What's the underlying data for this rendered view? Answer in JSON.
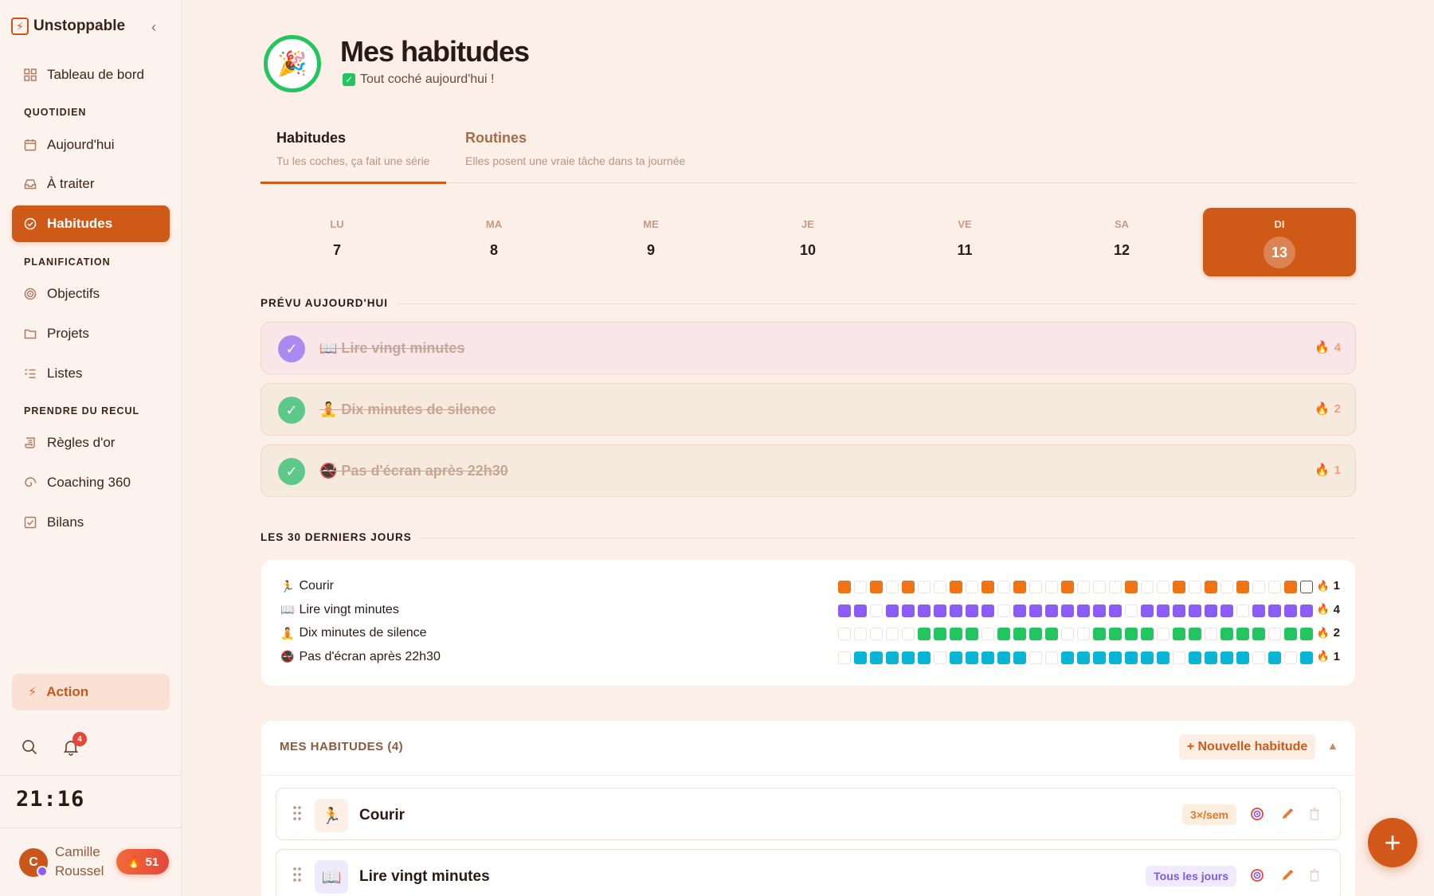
{
  "sidebar": {
    "brand": "Unstoppable",
    "collapse_glyph": "‹",
    "nav": {
      "dashboard": "Tableau de bord",
      "sec_daily": "QUOTIDIEN",
      "today": "Aujourd'hui",
      "todo": "À traiter",
      "habits": "Habitudes",
      "sec_planning": "PLANIFICATION",
      "goals": "Objectifs",
      "projects": "Projets",
      "lists": "Listes",
      "sec_step_back": "PRENDRE DU RECUL",
      "golden_rules": "Règles d'or",
      "coaching": "Coaching 360",
      "reviews": "Bilans"
    },
    "action_label": "Action",
    "notification_count": "4",
    "clock": "21:16",
    "user": {
      "initial": "C",
      "name": "Camille Roussel",
      "streak": "51"
    }
  },
  "header": {
    "icon": "🎉",
    "title": "Mes habitudes",
    "subtitle": "Tout coché aujourd'hui !"
  },
  "tabs": [
    {
      "title": "Habitudes",
      "subtitle": "Tu les coches, ça fait une série"
    },
    {
      "title": "Routines",
      "subtitle": "Elles posent une vraie tâche dans ta journée"
    }
  ],
  "week": [
    {
      "label": "LU",
      "num": "7"
    },
    {
      "label": "MA",
      "num": "8"
    },
    {
      "label": "ME",
      "num": "9"
    },
    {
      "label": "JE",
      "num": "10"
    },
    {
      "label": "VE",
      "num": "11"
    },
    {
      "label": "SA",
      "num": "12"
    },
    {
      "label": "DI",
      "num": "13"
    }
  ],
  "today_section": "PRÉVU AUJOURD'HUI",
  "today_habits": [
    {
      "label": "📖 Lire vingt minutes",
      "streak": "4",
      "check_color": "#a98bf0",
      "bg": "#f8e6e8"
    },
    {
      "label": "🧘 Dix minutes de silence",
      "streak": "2",
      "check_color": "#5cc98a",
      "bg": "#f6eadf"
    },
    {
      "label": "🚭 Pas d'écran après 22h30",
      "streak": "1",
      "check_color": "#5cc98a",
      "bg": "#f6eadf"
    }
  ],
  "last30_section": "LES 30 DERNIERS JOURS",
  "last30": [
    {
      "emoji": "🏃",
      "name": "Courir",
      "streak": "1",
      "color": "#f07316",
      "days": [
        1,
        0,
        1,
        0,
        1,
        0,
        0,
        1,
        0,
        1,
        0,
        1,
        0,
        0,
        1,
        0,
        0,
        0,
        1,
        0,
        0,
        1,
        0,
        1,
        0,
        1,
        0,
        0,
        1,
        0
      ]
    },
    {
      "emoji": "📖",
      "name": "Lire vingt minutes",
      "streak": "4",
      "color": "#8b5cf6",
      "days": [
        1,
        1,
        0,
        1,
        1,
        1,
        1,
        1,
        1,
        1,
        0,
        1,
        1,
        1,
        1,
        1,
        1,
        1,
        0,
        1,
        1,
        1,
        1,
        1,
        1,
        0,
        1,
        1,
        1,
        1
      ]
    },
    {
      "emoji": "🧘",
      "name": "Dix minutes de silence",
      "streak": "2",
      "color": "#22c55e",
      "days": [
        0,
        0,
        0,
        0,
        0,
        1,
        1,
        1,
        1,
        0,
        1,
        1,
        1,
        1,
        0,
        0,
        1,
        1,
        1,
        1,
        0,
        1,
        1,
        0,
        1,
        1,
        1,
        0,
        1,
        1
      ]
    },
    {
      "emoji": "🚭",
      "name": "Pas d'écran après 22h30",
      "streak": "1",
      "color": "#06b6d4",
      "days": [
        0,
        1,
        1,
        1,
        1,
        1,
        0,
        1,
        1,
        1,
        1,
        1,
        0,
        0,
        1,
        1,
        1,
        1,
        1,
        1,
        1,
        0,
        1,
        1,
        1,
        1,
        0,
        1,
        0,
        1
      ]
    }
  ],
  "my_habits": {
    "title": "MES HABITUDES (4)",
    "new_button": "+ Nouvelle habitude",
    "collapse_glyph": "▲",
    "items": [
      {
        "emoji": "🏃",
        "name": "Courir",
        "frequency": "3×/sem",
        "freq_color": "#e07a2e",
        "freq_bg": "#fdeede",
        "icon_bg": "#fdefe4"
      },
      {
        "emoji": "📖",
        "name": "Lire vingt minutes",
        "frequency": "Tous les jours",
        "freq_color": "#7c5ce0",
        "freq_bg": "#efeafd",
        "icon_bg": "#eeeafd"
      }
    ]
  },
  "fab_label": "+"
}
